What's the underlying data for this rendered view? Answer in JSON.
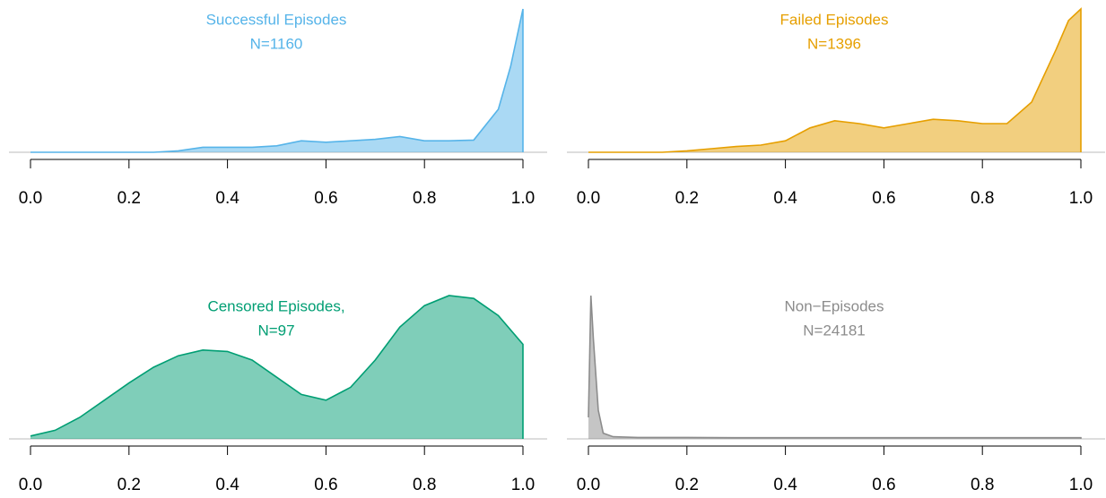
{
  "chart_data": [
    {
      "type": "area",
      "title": "Successful Episodes",
      "subtitle": "N=1160",
      "color": "#56B4E9",
      "x": [
        0,
        0.05,
        0.1,
        0.15,
        0.2,
        0.25,
        0.3,
        0.35,
        0.4,
        0.45,
        0.5,
        0.55,
        0.6,
        0.65,
        0.7,
        0.75,
        0.8,
        0.85,
        0.9,
        0.95,
        0.975,
        1
      ],
      "values": [
        0,
        0,
        0,
        0,
        0,
        0,
        0.01,
        0.035,
        0.035,
        0.035,
        0.045,
        0.08,
        0.07,
        0.08,
        0.09,
        0.11,
        0.08,
        0.08,
        0.085,
        0.3,
        0.6,
        1
      ],
      "xlim": [
        0,
        1
      ],
      "ylim": [
        0,
        1
      ],
      "xticks": [
        {
          "value": 0,
          "label": "0.0"
        },
        {
          "value": 0.2,
          "label": "0.2"
        },
        {
          "value": 0.4,
          "label": "0.4"
        },
        {
          "value": 0.6,
          "label": "0.6"
        },
        {
          "value": 0.8,
          "label": "0.8"
        },
        {
          "value": 1,
          "label": "1.0"
        }
      ]
    },
    {
      "type": "area",
      "title": "Failed Episodes",
      "subtitle": "N=1396",
      "color": "#E69F00",
      "x": [
        0,
        0.05,
        0.1,
        0.15,
        0.2,
        0.25,
        0.3,
        0.35,
        0.4,
        0.45,
        0.5,
        0.55,
        0.6,
        0.65,
        0.7,
        0.75,
        0.8,
        0.85,
        0.9,
        0.95,
        0.975,
        1
      ],
      "values": [
        0,
        0,
        0,
        0,
        0.01,
        0.025,
        0.04,
        0.05,
        0.08,
        0.17,
        0.22,
        0.2,
        0.17,
        0.2,
        0.23,
        0.22,
        0.2,
        0.2,
        0.35,
        0.72,
        0.92,
        1
      ],
      "xlim": [
        0,
        1
      ],
      "ylim": [
        0,
        1
      ],
      "xticks": [
        {
          "value": 0,
          "label": "0.0"
        },
        {
          "value": 0.2,
          "label": "0.2"
        },
        {
          "value": 0.4,
          "label": "0.4"
        },
        {
          "value": 0.6,
          "label": "0.6"
        },
        {
          "value": 0.8,
          "label": "0.8"
        },
        {
          "value": 1,
          "label": "1.0"
        }
      ]
    },
    {
      "type": "area",
      "title": "Censored Episodes,",
      "subtitle": "N=97",
      "color": "#009E73",
      "x": [
        0,
        0.05,
        0.1,
        0.15,
        0.2,
        0.25,
        0.3,
        0.35,
        0.4,
        0.45,
        0.5,
        0.55,
        0.6,
        0.65,
        0.7,
        0.75,
        0.8,
        0.85,
        0.9,
        0.95,
        1
      ],
      "values": [
        0.02,
        0.06,
        0.15,
        0.27,
        0.39,
        0.5,
        0.58,
        0.62,
        0.61,
        0.55,
        0.43,
        0.31,
        0.27,
        0.36,
        0.55,
        0.78,
        0.93,
        1,
        0.98,
        0.86,
        0.66
      ],
      "xlim": [
        0,
        1
      ],
      "ylim": [
        0,
        1
      ],
      "xticks": [
        {
          "value": 0,
          "label": "0.0"
        },
        {
          "value": 0.2,
          "label": "0.2"
        },
        {
          "value": 0.4,
          "label": "0.4"
        },
        {
          "value": 0.6,
          "label": "0.6"
        },
        {
          "value": 0.8,
          "label": "0.8"
        },
        {
          "value": 1,
          "label": "1.0"
        }
      ]
    },
    {
      "type": "area",
      "title": "Non−Episodes",
      "subtitle": "N=24181",
      "color": "#8c8c8c",
      "x": [
        0,
        0.005,
        0.01,
        0.02,
        0.03,
        0.05,
        0.1,
        0.2,
        0.3,
        0.4,
        0.5,
        0.6,
        0.7,
        0.8,
        0.9,
        1
      ],
      "values": [
        0.15,
        1,
        0.7,
        0.2,
        0.04,
        0.015,
        0.01,
        0.01,
        0.008,
        0.008,
        0.008,
        0.008,
        0.008,
        0.008,
        0.008,
        0.008
      ],
      "xlim": [
        0,
        1
      ],
      "ylim": [
        0,
        1
      ],
      "xticks": [
        {
          "value": 0,
          "label": "0.0"
        },
        {
          "value": 0.2,
          "label": "0.2"
        },
        {
          "value": 0.4,
          "label": "0.4"
        },
        {
          "value": 0.6,
          "label": "0.6"
        },
        {
          "value": 0.8,
          "label": "0.8"
        },
        {
          "value": 1,
          "label": "1.0"
        }
      ]
    }
  ]
}
